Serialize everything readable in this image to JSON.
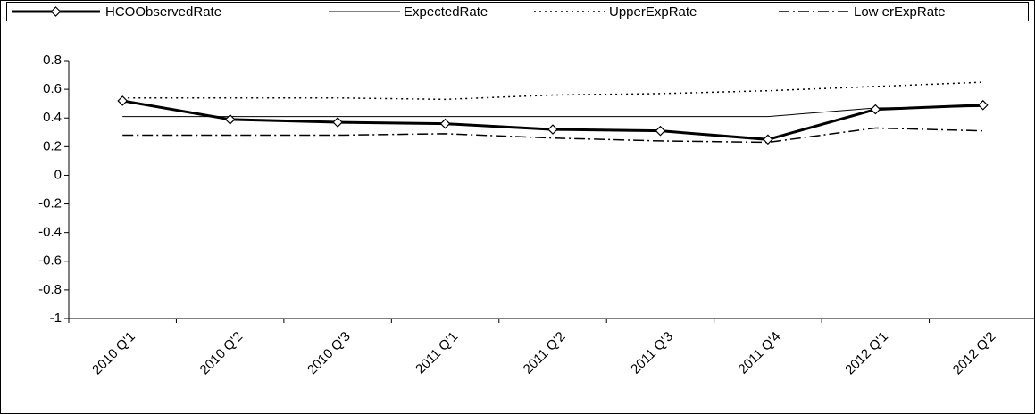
{
  "chart_data": {
    "type": "line",
    "categories": [
      "2010 Q'1",
      "2010 Q'2",
      "2010 Q'3",
      "2011 Q'1",
      "2011 Q'2",
      "2011 Q'3",
      "2011 Q'4",
      "2012 Q'1",
      "2012 Q'2"
    ],
    "series": [
      {
        "name": "HCOObservedRate",
        "color": "#000000",
        "style": "solid",
        "width": 3,
        "marker": "diamond",
        "values": [
          0.52,
          0.39,
          0.37,
          0.36,
          0.32,
          0.31,
          0.25,
          0.46,
          0.49
        ]
      },
      {
        "name": "ExpectedRate",
        "color": "#000000",
        "style": "solid",
        "width": 1,
        "values": [
          0.41,
          0.41,
          0.41,
          0.41,
          0.41,
          0.41,
          0.41,
          0.47,
          0.48
        ]
      },
      {
        "name": "UpperExpRate",
        "color": "#000000",
        "style": "dotted",
        "width": 1.5,
        "values": [
          0.54,
          0.54,
          0.54,
          0.53,
          0.56,
          0.57,
          0.59,
          0.62,
          0.65
        ]
      },
      {
        "name": "Low erExpRate",
        "color": "#000000",
        "style": "dashdot",
        "width": 1.5,
        "values": [
          0.28,
          0.28,
          0.28,
          0.29,
          0.26,
          0.24,
          0.23,
          0.33,
          0.31
        ]
      }
    ],
    "ylim": [
      -1,
      0.8
    ],
    "yticks": [
      0.8,
      0.6,
      0.4,
      0.2,
      0,
      -0.2,
      -0.4,
      -0.6,
      -0.8,
      -1
    ],
    "grid": false,
    "legend": "top"
  }
}
